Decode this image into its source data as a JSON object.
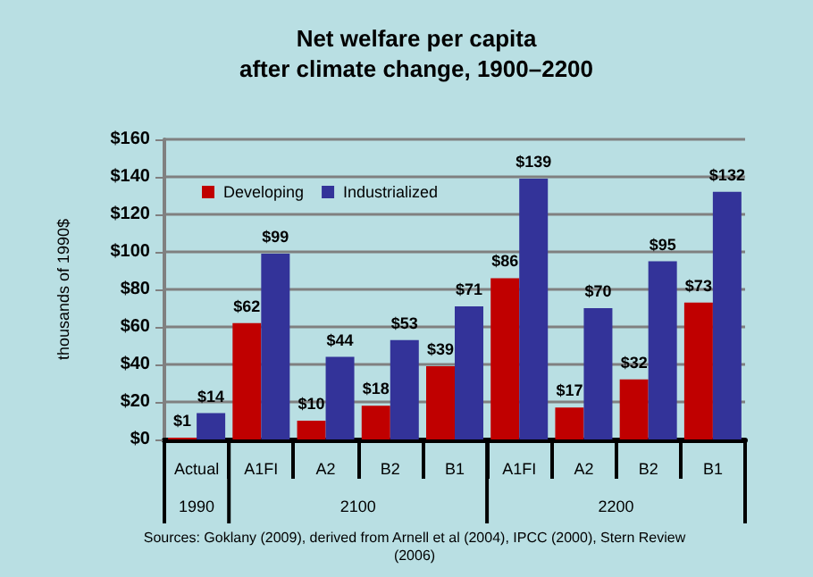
{
  "chart_data": {
    "type": "bar",
    "title": "Net welfare per capita\nafter climate change, 1900–2200",
    "ylabel": "thousands of 1990$",
    "categories": [
      "Actual",
      "A1FI",
      "A2",
      "B2",
      "B1",
      "A1FI",
      "A2",
      "B2",
      "B1"
    ],
    "series": [
      {
        "name": "Developing",
        "color": "#c00000",
        "values": [
          1,
          62,
          10,
          18,
          39,
          86,
          17,
          32,
          73
        ],
        "value_labels": [
          "$1",
          "$62",
          "$10",
          "$18",
          "$39",
          "$86",
          "$17",
          "$32",
          "$73"
        ]
      },
      {
        "name": "Industrialized",
        "color": "#333399",
        "values": [
          14,
          99,
          44,
          53,
          71,
          139,
          70,
          95,
          132
        ],
        "value_labels": [
          "$14",
          "$99",
          "$44",
          "$53",
          "$71",
          "$139",
          "$70",
          "$95",
          "$132"
        ]
      }
    ],
    "ylim": [
      0,
      160
    ],
    "yticks": [
      {
        "value": 0,
        "label": "$0"
      },
      {
        "value": 20,
        "label": "$20"
      },
      {
        "value": 40,
        "label": "$40"
      },
      {
        "value": 60,
        "label": "$60"
      },
      {
        "value": 80,
        "label": "$80"
      },
      {
        "value": 100,
        "label": "$100"
      },
      {
        "value": 120,
        "label": "$120"
      },
      {
        "value": 140,
        "label": "$140"
      },
      {
        "value": 160,
        "label": "$160"
      }
    ],
    "grid": "y",
    "legend": "top left",
    "annotations": [
      "1990",
      "2100",
      "2200",
      "Sources: Goklany (2009), derived from Arnell et al (2004), IPCC (2000), Stern Review\n(2006)"
    ]
  }
}
